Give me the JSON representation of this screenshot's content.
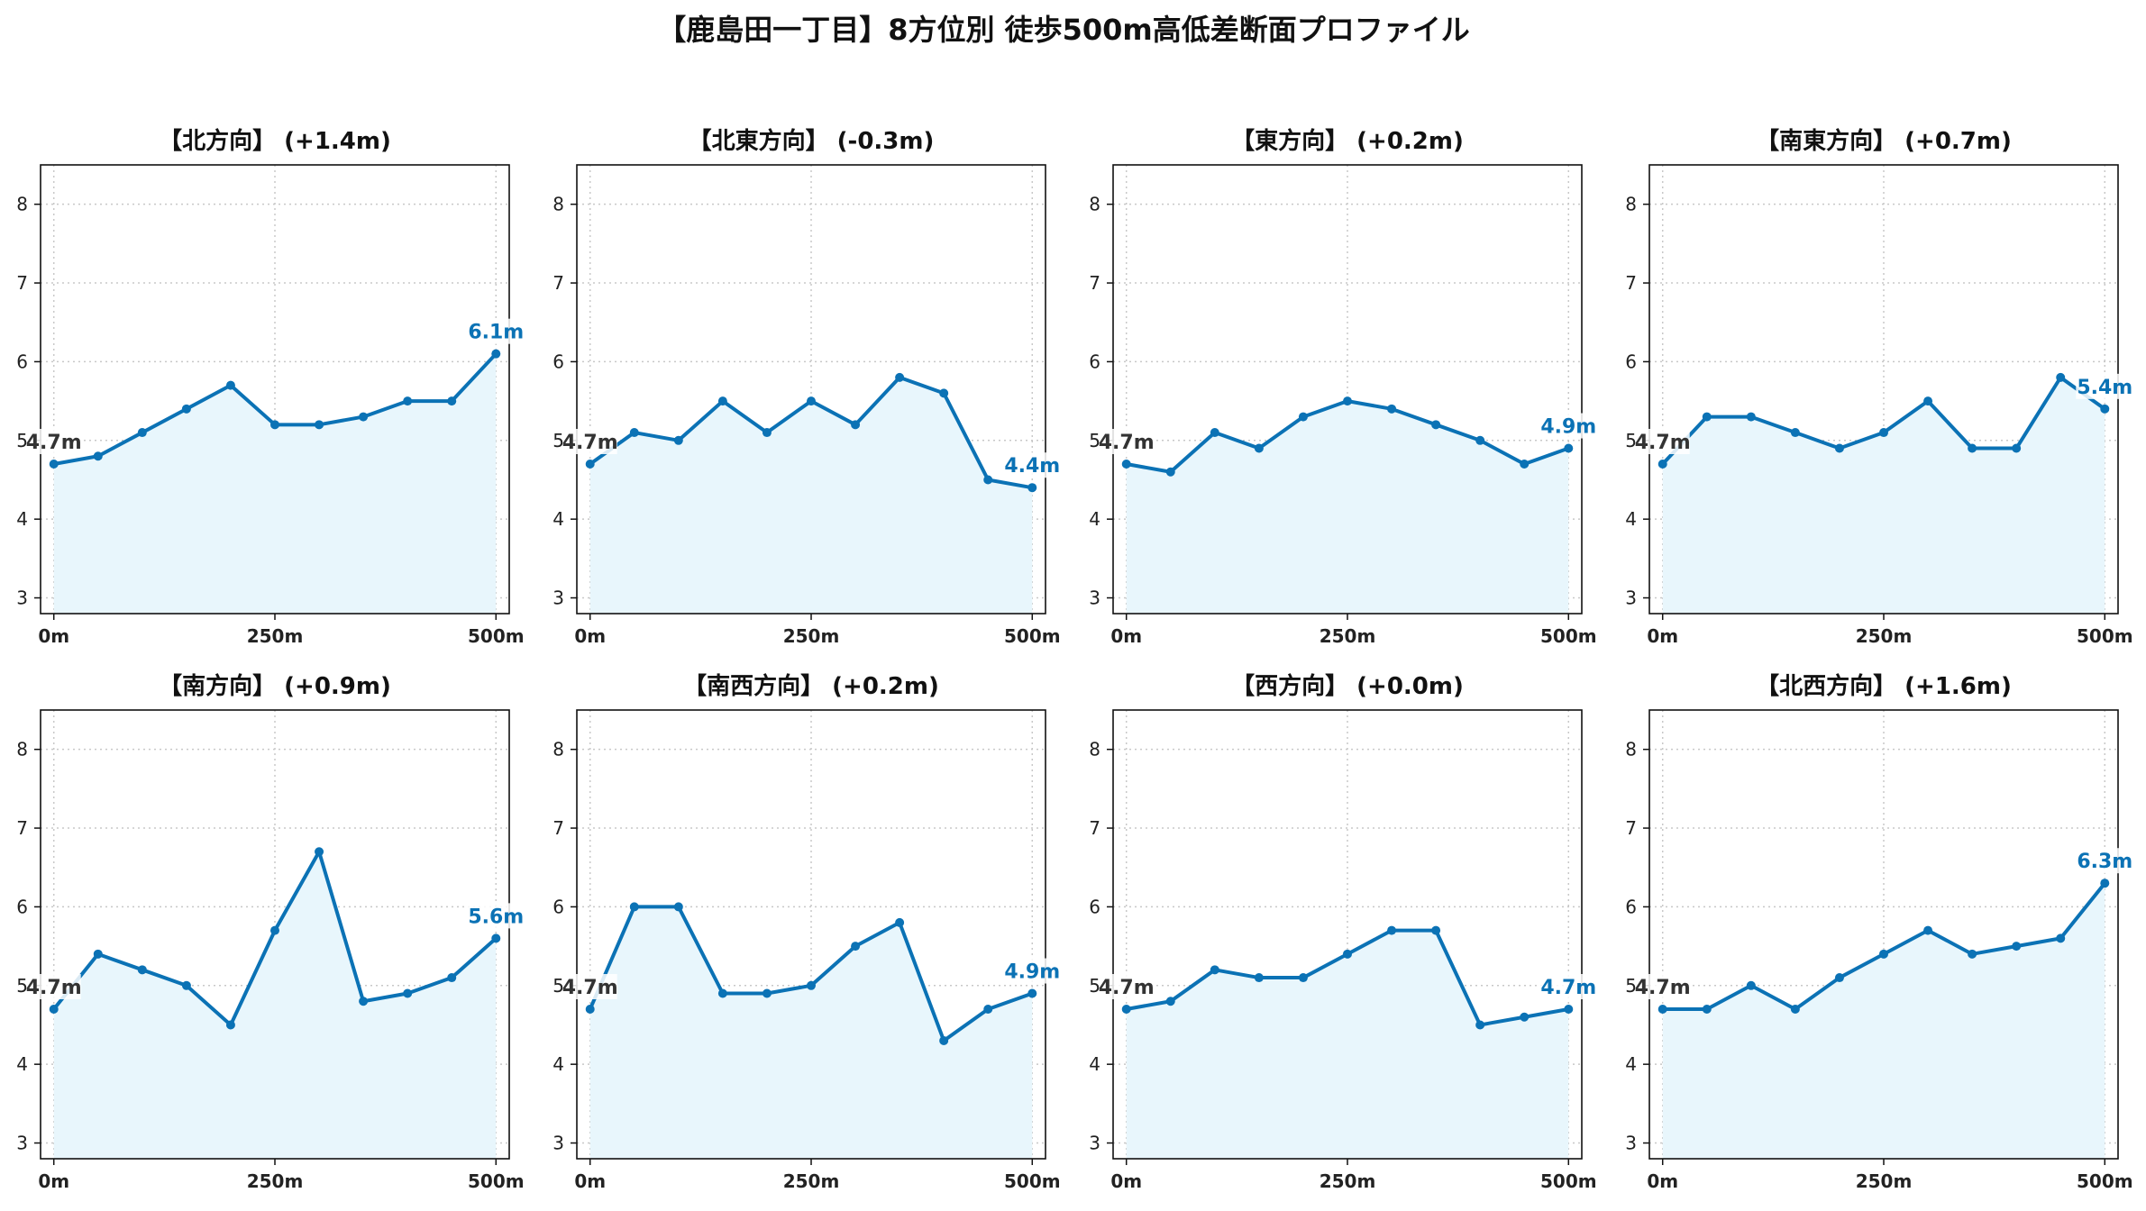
{
  "title": "【鹿島田一丁目】8方位別 徒歩500m高低差断面プロファイル",
  "chart_data": [
    {
      "type": "line",
      "title": "【北方向】 (+1.4m)",
      "x": [
        0,
        50,
        100,
        150,
        200,
        250,
        300,
        350,
        400,
        450,
        500
      ],
      "values": [
        4.7,
        4.8,
        5.1,
        5.4,
        5.7,
        5.2,
        5.2,
        5.3,
        5.5,
        5.5,
        6.1
      ],
      "start_label": "4.7m",
      "end_label": "6.1m",
      "xticks": [
        "0m",
        "250m",
        "500m"
      ],
      "yticks": [
        "3",
        "4",
        "5",
        "6",
        "7",
        "8"
      ],
      "ylim": [
        2.8,
        8.5
      ],
      "xlim": [
        -15,
        515
      ],
      "grid": true,
      "line_color": "#0b72b5",
      "fill_color": "#e8f6fc"
    },
    {
      "type": "line",
      "title": "【北東方向】 (-0.3m)",
      "x": [
        0,
        50,
        100,
        150,
        200,
        250,
        300,
        350,
        400,
        450,
        500
      ],
      "values": [
        4.7,
        5.1,
        5.0,
        5.5,
        5.1,
        5.5,
        5.2,
        5.8,
        5.6,
        4.5,
        4.4
      ],
      "start_label": "4.7m",
      "end_label": "4.4m",
      "xticks": [
        "0m",
        "250m",
        "500m"
      ],
      "yticks": [
        "3",
        "4",
        "5",
        "6",
        "7",
        "8"
      ],
      "ylim": [
        2.8,
        8.5
      ],
      "xlim": [
        -15,
        515
      ],
      "grid": true,
      "line_color": "#0b72b5",
      "fill_color": "#e8f6fc"
    },
    {
      "type": "line",
      "title": "【東方向】 (+0.2m)",
      "x": [
        0,
        50,
        100,
        150,
        200,
        250,
        300,
        350,
        400,
        450,
        500
      ],
      "values": [
        4.7,
        4.6,
        5.1,
        4.9,
        5.3,
        5.5,
        5.4,
        5.2,
        5.0,
        4.7,
        4.9
      ],
      "start_label": "4.7m",
      "end_label": "4.9m",
      "xticks": [
        "0m",
        "250m",
        "500m"
      ],
      "yticks": [
        "3",
        "4",
        "5",
        "6",
        "7",
        "8"
      ],
      "ylim": [
        2.8,
        8.5
      ],
      "xlim": [
        -15,
        515
      ],
      "grid": true,
      "line_color": "#0b72b5",
      "fill_color": "#e8f6fc"
    },
    {
      "type": "line",
      "title": "【南東方向】 (+0.7m)",
      "x": [
        0,
        50,
        100,
        150,
        200,
        250,
        300,
        350,
        400,
        450,
        500
      ],
      "values": [
        4.7,
        5.3,
        5.3,
        5.1,
        4.9,
        5.1,
        5.5,
        4.9,
        4.9,
        5.8,
        5.4
      ],
      "start_label": "4.7m",
      "end_label": "5.4m",
      "xticks": [
        "0m",
        "250m",
        "500m"
      ],
      "yticks": [
        "3",
        "4",
        "5",
        "6",
        "7",
        "8"
      ],
      "ylim": [
        2.8,
        8.5
      ],
      "xlim": [
        -15,
        515
      ],
      "grid": true,
      "line_color": "#0b72b5",
      "fill_color": "#e8f6fc"
    },
    {
      "type": "line",
      "title": "【南方向】 (+0.9m)",
      "x": [
        0,
        50,
        100,
        150,
        200,
        250,
        300,
        350,
        400,
        450,
        500
      ],
      "values": [
        4.7,
        5.4,
        5.2,
        5.0,
        4.5,
        5.7,
        6.7,
        4.8,
        4.9,
        5.1,
        5.6
      ],
      "start_label": "4.7m",
      "end_label": "5.6m",
      "xticks": [
        "0m",
        "250m",
        "500m"
      ],
      "yticks": [
        "3",
        "4",
        "5",
        "6",
        "7",
        "8"
      ],
      "ylim": [
        2.8,
        8.5
      ],
      "xlim": [
        -15,
        515
      ],
      "grid": true,
      "line_color": "#0b72b5",
      "fill_color": "#e8f6fc"
    },
    {
      "type": "line",
      "title": "【南西方向】 (+0.2m)",
      "x": [
        0,
        50,
        100,
        150,
        200,
        250,
        300,
        350,
        400,
        450,
        500
      ],
      "values": [
        4.7,
        6.0,
        6.0,
        4.9,
        4.9,
        5.0,
        5.5,
        5.8,
        4.3,
        4.7,
        4.9
      ],
      "start_label": "4.7m",
      "end_label": "4.9m",
      "xticks": [
        "0m",
        "250m",
        "500m"
      ],
      "yticks": [
        "3",
        "4",
        "5",
        "6",
        "7",
        "8"
      ],
      "ylim": [
        2.8,
        8.5
      ],
      "xlim": [
        -15,
        515
      ],
      "grid": true,
      "line_color": "#0b72b5",
      "fill_color": "#e8f6fc"
    },
    {
      "type": "line",
      "title": "【西方向】 (+0.0m)",
      "x": [
        0,
        50,
        100,
        150,
        200,
        250,
        300,
        350,
        400,
        450,
        500
      ],
      "values": [
        4.7,
        4.8,
        5.2,
        5.1,
        5.1,
        5.4,
        5.7,
        5.7,
        4.5,
        4.6,
        4.7
      ],
      "start_label": "4.7m",
      "end_label": "4.7m",
      "xticks": [
        "0m",
        "250m",
        "500m"
      ],
      "yticks": [
        "3",
        "4",
        "5",
        "6",
        "7",
        "8"
      ],
      "ylim": [
        2.8,
        8.5
      ],
      "xlim": [
        -15,
        515
      ],
      "grid": true,
      "line_color": "#0b72b5",
      "fill_color": "#e8f6fc"
    },
    {
      "type": "line",
      "title": "【北西方向】 (+1.6m)",
      "x": [
        0,
        50,
        100,
        150,
        200,
        250,
        300,
        350,
        400,
        450,
        500
      ],
      "values": [
        4.7,
        4.7,
        5.0,
        4.7,
        5.1,
        5.4,
        5.7,
        5.4,
        5.5,
        5.6,
        6.3
      ],
      "start_label": "4.7m",
      "end_label": "6.3m",
      "xticks": [
        "0m",
        "250m",
        "500m"
      ],
      "yticks": [
        "3",
        "4",
        "5",
        "6",
        "7",
        "8"
      ],
      "ylim": [
        2.8,
        8.5
      ],
      "xlim": [
        -15,
        515
      ],
      "grid": true,
      "line_color": "#0b72b5",
      "fill_color": "#e8f6fc"
    }
  ]
}
